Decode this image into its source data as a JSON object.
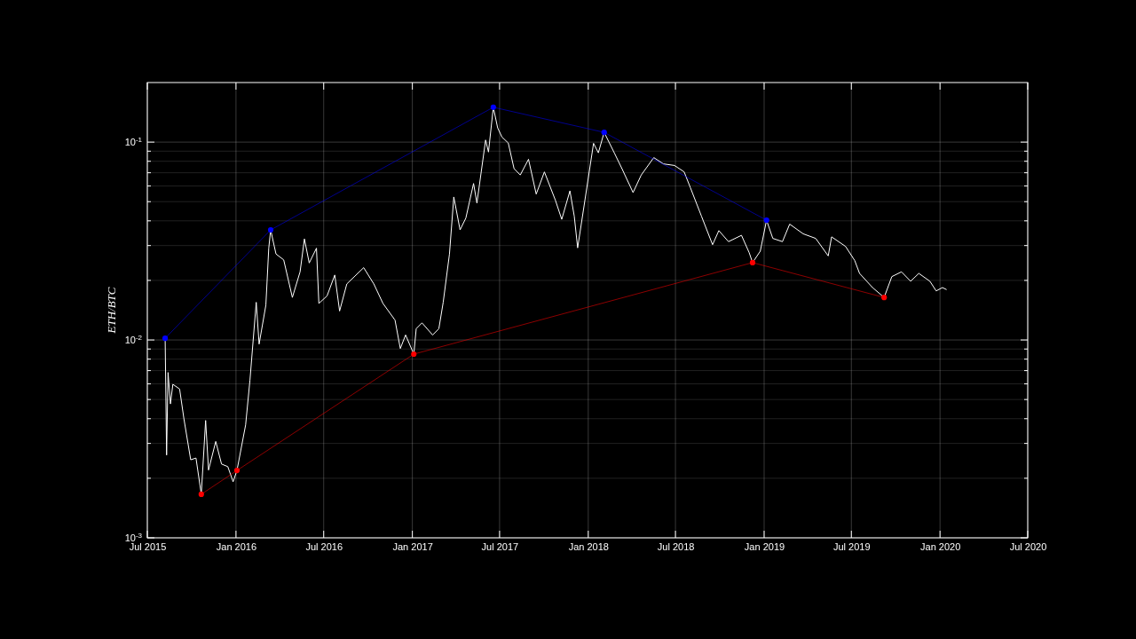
{
  "chart_data": {
    "type": "line",
    "ylabel": "ETH/BTC",
    "log": "y",
    "grid": true,
    "xlim": [
      "2015-07-01",
      "2020-07-01"
    ],
    "xticks": [
      {
        "value": "2015-07-01",
        "label": "Jul 2015"
      },
      {
        "value": "2016-01-01",
        "label": "Jan 2016"
      },
      {
        "value": "2016-07-01",
        "label": "Jul 2016"
      },
      {
        "value": "2017-01-01",
        "label": "Jan 2017"
      },
      {
        "value": "2017-07-01",
        "label": "Jul 2017"
      },
      {
        "value": "2018-01-01",
        "label": "Jan 2018"
      },
      {
        "value": "2018-07-01",
        "label": "Jul 2018"
      },
      {
        "value": "2019-01-01",
        "label": "Jan 2019"
      },
      {
        "value": "2019-07-01",
        "label": "Jul 2019"
      },
      {
        "value": "2020-01-01",
        "label": "Jan 2020"
      },
      {
        "value": "2020-07-01",
        "label": "Jul 2020"
      }
    ],
    "ylim": [
      0.001,
      0.2
    ],
    "yticks": [
      {
        "value": 0.001,
        "label": "10$^{-3}$"
      },
      {
        "value": 0.002,
        "label": null
      },
      {
        "value": 0.003,
        "label": null
      },
      {
        "value": 0.004,
        "label": null
      },
      {
        "value": 0.005,
        "label": null
      },
      {
        "value": 0.006,
        "label": null
      },
      {
        "value": 0.007,
        "label": null
      },
      {
        "value": 0.008,
        "label": null
      },
      {
        "value": 0.009,
        "label": null
      },
      {
        "value": 0.01,
        "label": "10$^{-2}$"
      },
      {
        "value": 0.02,
        "label": null
      },
      {
        "value": 0.03,
        "label": null
      },
      {
        "value": 0.04,
        "label": null
      },
      {
        "value": 0.05,
        "label": null
      },
      {
        "value": 0.06,
        "label": null
      },
      {
        "value": 0.07,
        "label": null
      },
      {
        "value": 0.08,
        "label": null
      },
      {
        "value": 0.09,
        "label": null
      },
      {
        "value": 0.1,
        "label": "10$^{-1}$"
      }
    ],
    "series": [
      {
        "color": "#ffffff",
        "marker": "none",
        "x": [
          "2015-08-07",
          "2015-08-10",
          "2015-08-13",
          "2015-08-18",
          "2015-08-23",
          "2015-09-06",
          "2015-09-15",
          "2015-09-29",
          "2015-10-10",
          "2015-10-21",
          "2015-10-30",
          "2015-11-05",
          "2015-11-20",
          "2015-12-02",
          "2015-12-15",
          "2015-12-26",
          "2016-01-03",
          "2016-01-21",
          "2016-01-30",
          "2016-02-12",
          "2016-02-18",
          "2016-03-03",
          "2016-03-09",
          "2016-03-13",
          "2016-03-24",
          "2016-04-09",
          "2016-04-27",
          "2016-05-13",
          "2016-05-22",
          "2016-06-01",
          "2016-06-16",
          "2016-06-21",
          "2016-07-08",
          "2016-07-24",
          "2016-08-03",
          "2016-08-18",
          "2016-09-22",
          "2016-10-13",
          "2016-11-01",
          "2016-11-26",
          "2016-12-07",
          "2016-12-18",
          "2017-01-04",
          "2017-01-09",
          "2017-01-21",
          "2017-02-12",
          "2017-02-25",
          "2017-03-06",
          "2017-03-19",
          "2017-03-28",
          "2017-04-10",
          "2017-04-22",
          "2017-05-08",
          "2017-05-15",
          "2017-06-02",
          "2017-06-08",
          "2017-06-18",
          "2017-06-27",
          "2017-07-06",
          "2017-07-19",
          "2017-07-31",
          "2017-08-13",
          "2017-08-30",
          "2017-09-15",
          "2017-10-02",
          "2017-10-25",
          "2017-11-07",
          "2017-11-24",
          "2017-12-03",
          "2017-12-10",
          "2017-12-23",
          "2018-01-12",
          "2018-01-22",
          "2018-02-03",
          "2018-02-24",
          "2018-03-12",
          "2018-04-04",
          "2018-04-21",
          "2018-05-17",
          "2018-06-06",
          "2018-06-29",
          "2018-07-19",
          "2018-08-01",
          "2018-08-24",
          "2018-09-16",
          "2018-09-29",
          "2018-10-19",
          "2018-11-15",
          "2018-12-01",
          "2018-12-08",
          "2018-12-24",
          "2019-01-06",
          "2019-01-19",
          "2019-02-08",
          "2019-02-23",
          "2019-03-23",
          "2019-04-18",
          "2019-05-14",
          "2019-05-21",
          "2019-06-19",
          "2019-07-08",
          "2019-07-18",
          "2019-08-14",
          "2019-09-07",
          "2019-09-23",
          "2019-10-13",
          "2019-11-01",
          "2019-11-18",
          "2019-12-11",
          "2019-12-24",
          "2020-01-06",
          "2020-01-14"
        ],
        "values": [
          0.0102,
          0.00262,
          0.00685,
          0.00475,
          0.00597,
          0.00565,
          0.00399,
          0.00248,
          0.00253,
          0.00166,
          0.00392,
          0.0022,
          0.00307,
          0.00236,
          0.00229,
          0.00192,
          0.00219,
          0.00372,
          0.00627,
          0.0155,
          0.00953,
          0.015,
          0.0291,
          0.036,
          0.0272,
          0.0254,
          0.0164,
          0.0221,
          0.0324,
          0.0245,
          0.0291,
          0.0153,
          0.0167,
          0.0213,
          0.014,
          0.0192,
          0.0232,
          0.0192,
          0.0153,
          0.0126,
          0.00905,
          0.0106,
          0.00848,
          0.0114,
          0.0122,
          0.0106,
          0.0114,
          0.0155,
          0.0272,
          0.0528,
          0.036,
          0.0413,
          0.0618,
          0.0492,
          0.1025,
          0.0891,
          0.15,
          0.118,
          0.106,
          0.099,
          0.0735,
          0.0682,
          0.0819,
          0.0546,
          0.0707,
          0.0507,
          0.0407,
          0.0567,
          0.0422,
          0.0292,
          0.0471,
          0.0986,
          0.0883,
          0.112,
          0.0883,
          0.0734,
          0.0556,
          0.0682,
          0.0835,
          0.0776,
          0.0762,
          0.0707,
          0.0588,
          0.0422,
          0.0303,
          0.0357,
          0.0314,
          0.0338,
          0.0276,
          0.0246,
          0.0281,
          0.0403,
          0.0326,
          0.0314,
          0.0385,
          0.0344,
          0.0326,
          0.0266,
          0.0332,
          0.0297,
          0.0252,
          0.0217,
          0.0184,
          0.0164,
          0.0209,
          0.0221,
          0.0198,
          0.0217,
          0.0198,
          0.0177,
          0.0184,
          0.018
        ]
      },
      {
        "color": "#0000ff",
        "marker": "circle",
        "x": [
          "2015-08-07",
          "2016-03-13",
          "2017-06-18",
          "2018-02-03",
          "2019-01-06"
        ],
        "values": [
          0.0102,
          0.036,
          0.15,
          0.112,
          0.0403
        ]
      },
      {
        "color": "#ff0000",
        "marker": "circle",
        "x": [
          "2015-10-21",
          "2016-01-03",
          "2017-01-04",
          "2018-12-08",
          "2019-09-07"
        ],
        "values": [
          0.00166,
          0.00219,
          0.00848,
          0.0246,
          0.0164
        ]
      }
    ]
  }
}
